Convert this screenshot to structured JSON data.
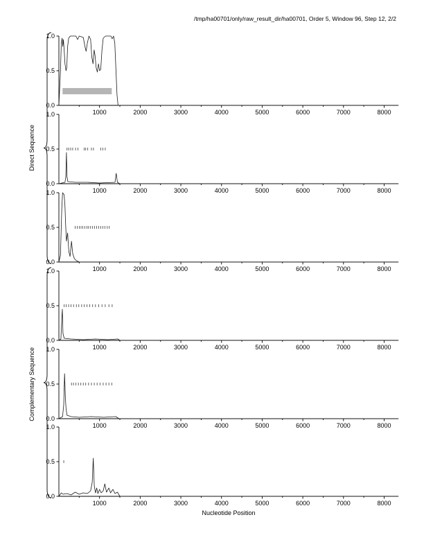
{
  "chart_data": {
    "type": "line",
    "title": "/tmp/ha00701/only/raw_result_dir/ha00701, Order 5, Window 96, Step 12, 2/2",
    "xlabel": "Nucleotide Position",
    "x_range": [
      0,
      8350
    ],
    "x_major_ticks": [
      1000,
      2000,
      3000,
      4000,
      5000,
      6000,
      7000,
      8000
    ],
    "x_minor_step": 500,
    "y_range": [
      0,
      1
    ],
    "y_ticks": [
      0,
      0.5,
      1
    ],
    "y_tick_labels": [
      "0.0",
      "0.5",
      "1.0"
    ],
    "line_color": "#1a1a1a",
    "legend": "none",
    "grid": false,
    "groups": [
      {
        "label": "Direct Sequence",
        "panel_indexes": [
          0,
          1,
          2
        ]
      },
      {
        "label": "Complementary Sequence",
        "panel_indexes": [
          3,
          4,
          5
        ]
      }
    ],
    "panels": [
      {
        "name": "direct-frame-1",
        "series": [
          [
            0,
            0.0
          ],
          [
            40,
            0.5
          ],
          [
            60,
            0.9
          ],
          [
            80,
            0.97
          ],
          [
            95,
            0.85
          ],
          [
            110,
            0.95
          ],
          [
            130,
            0.8
          ],
          [
            150,
            0.6
          ],
          [
            175,
            0.5
          ],
          [
            195,
            0.55
          ],
          [
            215,
            0.85
          ],
          [
            240,
            0.97
          ],
          [
            280,
            1.0
          ],
          [
            420,
            1.0
          ],
          [
            460,
            0.95
          ],
          [
            500,
            1.0
          ],
          [
            600,
            0.98
          ],
          [
            640,
            0.85
          ],
          [
            670,
            0.78
          ],
          [
            700,
            0.9
          ],
          [
            740,
            1.0
          ],
          [
            780,
            0.95
          ],
          [
            810,
            0.7
          ],
          [
            840,
            0.6
          ],
          [
            865,
            0.8
          ],
          [
            890,
            0.72
          ],
          [
            915,
            0.55
          ],
          [
            945,
            0.48
          ],
          [
            975,
            0.6
          ],
          [
            1000,
            0.5
          ],
          [
            1030,
            0.52
          ],
          [
            1060,
            0.8
          ],
          [
            1090,
            0.97
          ],
          [
            1150,
            1.0
          ],
          [
            1280,
            1.0
          ],
          [
            1310,
            0.96
          ],
          [
            1345,
            1.0
          ],
          [
            1375,
            0.9
          ],
          [
            1405,
            0.5
          ],
          [
            1430,
            0.15
          ],
          [
            1455,
            0.0
          ],
          [
            8350,
            0.0
          ]
        ],
        "marks_y": 0.5,
        "codon_marks": [],
        "coding_bar": {
          "x_start": 90,
          "x_end": 1300,
          "y_bottom": 0.16,
          "y_top": 0.25,
          "color": "#b5b5b5"
        }
      },
      {
        "name": "direct-frame-2",
        "series": [
          [
            0,
            0.0
          ],
          [
            150,
            0.02
          ],
          [
            170,
            0.1
          ],
          [
            185,
            0.45
          ],
          [
            200,
            0.1
          ],
          [
            220,
            0.03
          ],
          [
            400,
            0.02
          ],
          [
            700,
            0.02
          ],
          [
            1000,
            0.01
          ],
          [
            1380,
            0.02
          ],
          [
            1410,
            0.15
          ],
          [
            1440,
            0.02
          ],
          [
            1500,
            0.0
          ],
          [
            8350,
            0.0
          ]
        ],
        "marks_y": 0.5,
        "codon_marks": [
          200,
          240,
          290,
          340,
          410,
          470,
          620,
          660,
          710,
          800,
          850,
          1030,
          1080,
          1140
        ],
        "coding_bar": null
      },
      {
        "name": "direct-frame-3",
        "series": [
          [
            0,
            0.0
          ],
          [
            40,
            0.1
          ],
          [
            70,
            0.75
          ],
          [
            90,
            1.0
          ],
          [
            130,
            0.97
          ],
          [
            150,
            0.8
          ],
          [
            165,
            0.55
          ],
          [
            185,
            0.3
          ],
          [
            215,
            0.42
          ],
          [
            245,
            0.15
          ],
          [
            275,
            0.08
          ],
          [
            310,
            0.3
          ],
          [
            340,
            0.12
          ],
          [
            380,
            0.05
          ],
          [
            430,
            0.02
          ],
          [
            500,
            0.0
          ],
          [
            8350,
            0.0
          ]
        ],
        "marks_y": 0.5,
        "codon_marks": [
          400,
          450,
          500,
          545,
          590,
          640,
          690,
          730,
          780,
          830,
          880,
          930,
          980,
          1030,
          1080,
          1130,
          1190,
          1240
        ],
        "coding_bar": null
      },
      {
        "name": "complementary-frame-1",
        "series": [
          [
            0,
            0.0
          ],
          [
            50,
            0.02
          ],
          [
            70,
            0.3
          ],
          [
            85,
            0.45
          ],
          [
            100,
            0.1
          ],
          [
            130,
            0.03
          ],
          [
            300,
            0.02
          ],
          [
            600,
            0.01
          ],
          [
            900,
            0.02
          ],
          [
            1200,
            0.01
          ],
          [
            1450,
            0.02
          ],
          [
            1500,
            0.0
          ],
          [
            8350,
            0.0
          ]
        ],
        "marks_y": 0.5,
        "codon_marks": [
          130,
          180,
          240,
          300,
          360,
          430,
          490,
          560,
          620,
          690,
          760,
          830,
          900,
          980,
          1060,
          1140,
          1230,
          1310
        ],
        "coding_bar": null
      },
      {
        "name": "complementary-frame-2",
        "series": [
          [
            0,
            0.0
          ],
          [
            90,
            0.03
          ],
          [
            120,
            0.2
          ],
          [
            140,
            0.65
          ],
          [
            160,
            0.3
          ],
          [
            175,
            0.15
          ],
          [
            200,
            0.05
          ],
          [
            300,
            0.03
          ],
          [
            500,
            0.02
          ],
          [
            800,
            0.03
          ],
          [
            1100,
            0.02
          ],
          [
            1400,
            0.03
          ],
          [
            1480,
            0.0
          ],
          [
            8350,
            0.0
          ]
        ],
        "marks_y": 0.5,
        "codon_marks": [
          310,
          360,
          420,
          480,
          540,
          600,
          660,
          730,
          800,
          870,
          940,
          1010,
          1090,
          1160,
          1230,
          1300
        ],
        "coding_bar": null
      },
      {
        "name": "complementary-frame-3",
        "series": [
          [
            0,
            0.0
          ],
          [
            60,
            0.05
          ],
          [
            100,
            0.03
          ],
          [
            200,
            0.04
          ],
          [
            300,
            0.02
          ],
          [
            400,
            0.06
          ],
          [
            500,
            0.03
          ],
          [
            600,
            0.05
          ],
          [
            700,
            0.04
          ],
          [
            780,
            0.08
          ],
          [
            820,
            0.2
          ],
          [
            845,
            0.55
          ],
          [
            870,
            0.15
          ],
          [
            900,
            0.05
          ],
          [
            930,
            0.12
          ],
          [
            960,
            0.04
          ],
          [
            1000,
            0.1
          ],
          [
            1040,
            0.05
          ],
          [
            1090,
            0.08
          ],
          [
            1130,
            0.18
          ],
          [
            1170,
            0.06
          ],
          [
            1230,
            0.12
          ],
          [
            1270,
            0.05
          ],
          [
            1330,
            0.1
          ],
          [
            1380,
            0.04
          ],
          [
            1440,
            0.06
          ],
          [
            1500,
            0.0
          ],
          [
            8350,
            0.0
          ]
        ],
        "marks_y": 0.5,
        "codon_marks": [
          120
        ],
        "coding_bar": null
      }
    ]
  }
}
